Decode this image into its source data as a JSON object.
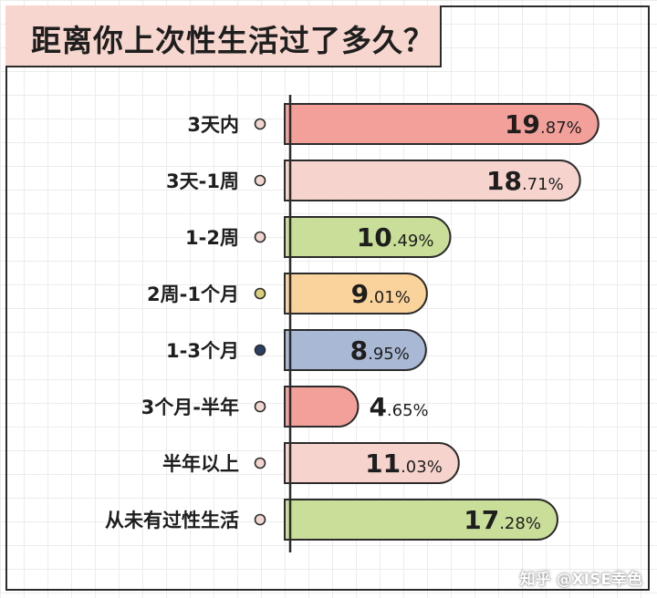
{
  "title": "距离你上次性生活过了多久？",
  "watermark": "知乎 @XISE幸色",
  "chart_data": {
    "type": "bar",
    "orientation": "horizontal",
    "title": "距离你上次性生活过了多久？",
    "xlabel": "",
    "ylabel": "",
    "unit": "%",
    "categories": [
      "3天内",
      "3天-1周",
      "1-2周",
      "2周-1个月",
      "1-3个月",
      "3个月-半年",
      "半年以上",
      "从未有过性生活"
    ],
    "values": [
      19.87,
      18.71,
      10.49,
      9.01,
      8.95,
      4.65,
      11.03,
      17.28
    ],
    "value_labels": [
      {
        "int": "19",
        "frac": ".87%"
      },
      {
        "int": "18",
        "frac": ".71%"
      },
      {
        "int": "10",
        "frac": ".49%"
      },
      {
        "int": "9",
        "frac": ".01%"
      },
      {
        "int": "8",
        "frac": ".95%"
      },
      {
        "int": "4",
        "frac": ".65%"
      },
      {
        "int": "11",
        "frac": ".03%"
      },
      {
        "int": "17",
        "frac": ".28%"
      }
    ],
    "bar_colors": [
      "#f3a09b",
      "#f6d4cd",
      "#c9df99",
      "#f9d29c",
      "#a9b8d4",
      "#f3a09b",
      "#f6d4cd",
      "#c9df99"
    ],
    "dot_colors": [
      "#f2d6d0",
      "#f2d6d0",
      "#f2d6d0",
      "#d8d07a",
      "#2c3e63",
      "#f2d6d0",
      "#f2d6d0",
      "#f2d6d0"
    ],
    "grid": true,
    "legend": "none"
  }
}
